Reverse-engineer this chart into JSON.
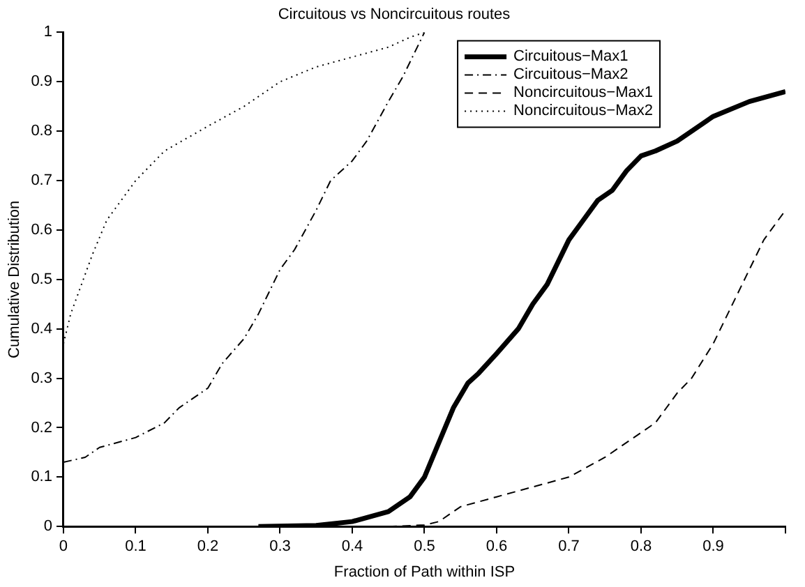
{
  "chart_data": {
    "type": "line",
    "title": "Circuitous vs Noncircuitous routes",
    "xlabel": "Fraction of Path within ISP",
    "ylabel": "Cumulative Distribution",
    "xlim": [
      0,
      1
    ],
    "xticks": [
      0,
      0.1,
      0.2,
      0.3,
      0.4,
      0.5,
      0.6,
      0.7,
      0.8,
      0.9,
      {
        "value": 1,
        "label": null
      }
    ],
    "ylim": [
      0,
      1
    ],
    "yticks": [
      0,
      0.1,
      0.2,
      0.3,
      0.4,
      0.5,
      0.6,
      0.7,
      0.8,
      0.9,
      1
    ],
    "grid": false,
    "legend": "top right",
    "marker": "none",
    "series": [
      {
        "name": "Circuitous−Max1",
        "color": "#000000",
        "line_style": "solid",
        "x": [
          0.27,
          0.35,
          0.4,
          0.45,
          0.48,
          0.5,
          0.52,
          0.54,
          0.56,
          0.575,
          0.6,
          0.63,
          0.65,
          0.67,
          0.69,
          0.7,
          0.72,
          0.74,
          0.76,
          0.78,
          0.8,
          0.82,
          0.85,
          0.88,
          0.9,
          0.95,
          1.0
        ],
        "values": [
          0,
          0.002,
          0.01,
          0.03,
          0.06,
          0.1,
          0.17,
          0.24,
          0.29,
          0.31,
          0.35,
          0.4,
          0.45,
          0.49,
          0.55,
          0.58,
          0.62,
          0.66,
          0.68,
          0.72,
          0.75,
          0.76,
          0.78,
          0.81,
          0.83,
          0.86,
          0.88
        ]
      },
      {
        "name": "Circuitous−Max2",
        "color": "#000000",
        "line_style": "dashdot",
        "x": [
          0,
          0.03,
          0.05,
          0.1,
          0.14,
          0.16,
          0.2,
          0.22,
          0.25,
          0.27,
          0.3,
          0.32,
          0.35,
          0.37,
          0.4,
          0.42,
          0.45,
          0.47,
          0.5
        ],
        "values": [
          0.13,
          0.14,
          0.16,
          0.18,
          0.21,
          0.24,
          0.28,
          0.33,
          0.38,
          0.43,
          0.52,
          0.56,
          0.64,
          0.7,
          0.74,
          0.78,
          0.86,
          0.91,
          1.0
        ]
      },
      {
        "name": "Noncircuitous−Max1",
        "color": "#000000",
        "line_style": "dashed",
        "x": [
          0.45,
          0.5,
          0.52,
          0.55,
          0.6,
          0.65,
          0.7,
          0.75,
          0.8,
          0.82,
          0.85,
          0.87,
          0.9,
          0.93,
          0.95,
          0.97,
          1.0
        ],
        "values": [
          0,
          0.003,
          0.01,
          0.04,
          0.06,
          0.08,
          0.1,
          0.14,
          0.19,
          0.21,
          0.27,
          0.3,
          0.37,
          0.46,
          0.52,
          0.58,
          0.64
        ]
      },
      {
        "name": "Noncircuitous−Max2",
        "color": "#000000",
        "line_style": "dotted",
        "x": [
          0,
          0.01,
          0.02,
          0.04,
          0.06,
          0.1,
          0.14,
          0.2,
          0.25,
          0.3,
          0.35,
          0.4,
          0.45,
          0.48,
          0.5
        ],
        "values": [
          0.37,
          0.43,
          0.47,
          0.55,
          0.62,
          0.7,
          0.76,
          0.81,
          0.85,
          0.9,
          0.93,
          0.95,
          0.97,
          0.99,
          1.0
        ]
      }
    ]
  }
}
